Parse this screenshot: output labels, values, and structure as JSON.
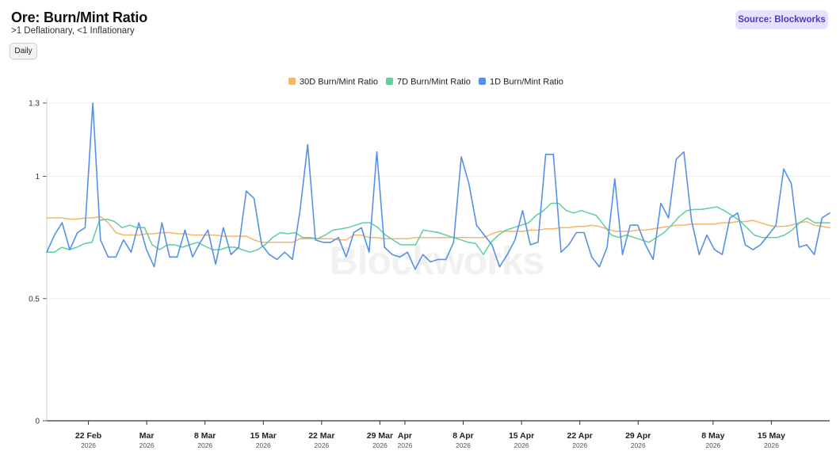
{
  "header": {
    "title": "Ore: Burn/Mint Ratio",
    "subtitle": ">1 Deflationary, <1 Inflationary",
    "daily_label": "Daily",
    "source_label": "Source: Blockworks"
  },
  "watermark": "Blockworks",
  "colors": {
    "30d": "#f5b56b",
    "7d": "#5fcf9e",
    "1d": "#5591e6",
    "source_bg": "#e6e1ff",
    "source_text": "#4a3bbd"
  },
  "chart_data": {
    "type": "line",
    "title": "Ore: Burn/Mint Ratio",
    "subtitle": ">1 Deflationary, <1 Inflationary",
    "x_start": "2026-02-17",
    "x_end": "2026-05-22",
    "ylim": [
      0,
      1.3
    ],
    "y_ticks": [
      0,
      0.5,
      1,
      1.3
    ],
    "grid": "horizontal",
    "legend_position": "top-center",
    "x_ticks": [
      {
        "date": "2026-02-22",
        "label": "22 Feb",
        "year": "2026"
      },
      {
        "date": "2026-03-01",
        "label": "Mar",
        "year": "2026"
      },
      {
        "date": "2026-03-08",
        "label": "8 Mar",
        "year": "2026"
      },
      {
        "date": "2026-03-15",
        "label": "15 Mar",
        "year": "2026"
      },
      {
        "date": "2026-03-22",
        "label": "22 Mar",
        "year": "2026"
      },
      {
        "date": "2026-03-29",
        "label": "29 Mar",
        "year": "2026"
      },
      {
        "date": "2026-04-01",
        "label": "Apr",
        "year": "2026"
      },
      {
        "date": "2026-04-08",
        "label": "8 Apr",
        "year": "2026"
      },
      {
        "date": "2026-04-15",
        "label": "15 Apr",
        "year": "2026"
      },
      {
        "date": "2026-04-22",
        "label": "22 Apr",
        "year": "2026"
      },
      {
        "date": "2026-04-29",
        "label": "29 Apr",
        "year": "2026"
      },
      {
        "date": "2026-05-08",
        "label": "8 May",
        "year": "2026"
      },
      {
        "date": "2026-05-15",
        "label": "15 May",
        "year": "2026"
      }
    ],
    "series": [
      {
        "name": "30D Burn/Mint Ratio",
        "key": "30d",
        "values": [
          0.83,
          0.83,
          0.83,
          0.825,
          0.825,
          0.83,
          0.83,
          0.835,
          0.81,
          0.77,
          0.76,
          0.76,
          0.76,
          0.765,
          0.765,
          0.77,
          0.77,
          0.765,
          0.765,
          0.76,
          0.76,
          0.76,
          0.76,
          0.755,
          0.755,
          0.755,
          0.755,
          0.74,
          0.73,
          0.73,
          0.73,
          0.73,
          0.73,
          0.745,
          0.745,
          0.745,
          0.745,
          0.745,
          0.74,
          0.74,
          0.76,
          0.76,
          0.75,
          0.75,
          0.745,
          0.745,
          0.745,
          0.745,
          0.75,
          0.75,
          0.75,
          0.75,
          0.75,
          0.75,
          0.75,
          0.75,
          0.75,
          0.75,
          0.765,
          0.775,
          0.775,
          0.775,
          0.775,
          0.78,
          0.78,
          0.785,
          0.785,
          0.79,
          0.79,
          0.795,
          0.795,
          0.8,
          0.795,
          0.785,
          0.775,
          0.775,
          0.775,
          0.78,
          0.78,
          0.785,
          0.79,
          0.795,
          0.8,
          0.8,
          0.805,
          0.805,
          0.805,
          0.805,
          0.81,
          0.81,
          0.815,
          0.815,
          0.82,
          0.81,
          0.8,
          0.795,
          0.795,
          0.8,
          0.81,
          0.815,
          0.8,
          0.795,
          0.79
        ]
      },
      {
        "name": "7D Burn/Mint Ratio",
        "key": "7d",
        "values": [
          0.69,
          0.69,
          0.71,
          0.7,
          0.71,
          0.725,
          0.73,
          0.82,
          0.825,
          0.815,
          0.79,
          0.8,
          0.79,
          0.79,
          0.72,
          0.7,
          0.72,
          0.72,
          0.71,
          0.72,
          0.73,
          0.715,
          0.7,
          0.7,
          0.71,
          0.71,
          0.7,
          0.69,
          0.7,
          0.72,
          0.75,
          0.77,
          0.765,
          0.77,
          0.75,
          0.75,
          0.745,
          0.76,
          0.78,
          0.785,
          0.79,
          0.8,
          0.81,
          0.81,
          0.79,
          0.76,
          0.74,
          0.72,
          0.72,
          0.72,
          0.78,
          0.775,
          0.77,
          0.76,
          0.75,
          0.74,
          0.73,
          0.725,
          0.68,
          0.73,
          0.76,
          0.78,
          0.79,
          0.8,
          0.81,
          0.84,
          0.86,
          0.89,
          0.89,
          0.86,
          0.85,
          0.86,
          0.85,
          0.84,
          0.8,
          0.76,
          0.75,
          0.76,
          0.75,
          0.74,
          0.73,
          0.75,
          0.77,
          0.8,
          0.835,
          0.86,
          0.865,
          0.865,
          0.87,
          0.875,
          0.86,
          0.84,
          0.82,
          0.79,
          0.76,
          0.75,
          0.75,
          0.75,
          0.76,
          0.78,
          0.81,
          0.83,
          0.81,
          0.81,
          0.81
        ]
      },
      {
        "name": "1D Burn/Mint Ratio",
        "key": "1d",
        "values": [
          0.69,
          0.76,
          0.81,
          0.7,
          0.77,
          0.79,
          1.3,
          0.74,
          0.67,
          0.67,
          0.74,
          0.69,
          0.81,
          0.7,
          0.63,
          0.81,
          0.67,
          0.67,
          0.78,
          0.67,
          0.73,
          0.78,
          0.64,
          0.79,
          0.68,
          0.71,
          0.94,
          0.91,
          0.72,
          0.68,
          0.66,
          0.69,
          0.66,
          0.86,
          1.13,
          0.74,
          0.73,
          0.73,
          0.75,
          0.67,
          0.77,
          0.79,
          0.69,
          1.1,
          0.71,
          0.68,
          0.67,
          0.69,
          0.62,
          0.68,
          0.65,
          0.66,
          0.66,
          0.73,
          1.08,
          0.97,
          0.8,
          0.76,
          0.72,
          0.63,
          0.68,
          0.74,
          0.86,
          0.72,
          0.73,
          1.09,
          1.09,
          0.69,
          0.72,
          0.77,
          0.77,
          0.67,
          0.63,
          0.71,
          0.99,
          0.68,
          0.8,
          0.8,
          0.72,
          0.66,
          0.89,
          0.83,
          1.07,
          1.1,
          0.82,
          0.68,
          0.76,
          0.7,
          0.68,
          0.83,
          0.85,
          0.72,
          0.7,
          0.72,
          0.76,
          0.8,
          1.03,
          0.97,
          0.71,
          0.72,
          0.68,
          0.83,
          0.85
        ]
      }
    ]
  }
}
